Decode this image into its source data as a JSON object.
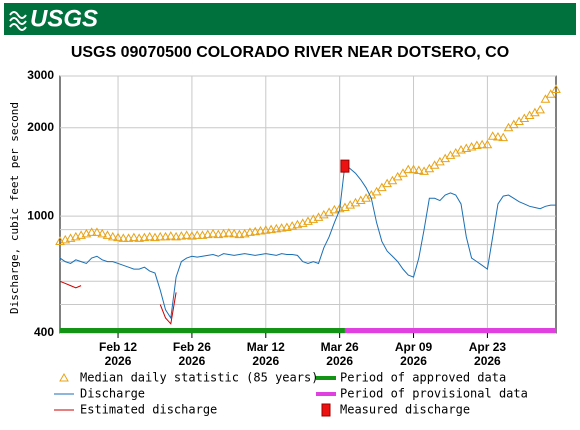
{
  "header": {
    "logo": "USGS"
  },
  "chart_data": {
    "type": "line",
    "title": "USGS 09070500 COLORADO RIVER NEAR DOTSERO, CO",
    "y_label": "Discharge, cubic feet per second",
    "log_y": true,
    "grid": true,
    "ylim": [
      400,
      3000
    ],
    "yticks": [
      400,
      1000,
      2000,
      3000
    ],
    "yminorticks": [
      500,
      600,
      700,
      800,
      900
    ],
    "xlim": [
      "2026-02-01",
      "2026-05-06"
    ],
    "xticks": [
      {
        "value": "2026-02-12",
        "label": "Feb 12\n2026"
      },
      {
        "value": "2026-02-26",
        "label": "Feb 26\n2026"
      },
      {
        "value": "2026-03-12",
        "label": "Mar 12\n2026"
      },
      {
        "value": "2026-03-26",
        "label": "Mar 26\n2026"
      },
      {
        "value": "2026-04-09",
        "label": "Apr 09\n2026"
      },
      {
        "value": "2026-04-23",
        "label": "Apr 23\n2026"
      }
    ],
    "x": [
      "2026-02-01",
      "2026-02-02",
      "2026-02-03",
      "2026-02-04",
      "2026-02-05",
      "2026-02-06",
      "2026-02-07",
      "2026-02-08",
      "2026-02-09",
      "2026-02-10",
      "2026-02-11",
      "2026-02-12",
      "2026-02-13",
      "2026-02-14",
      "2026-02-15",
      "2026-02-16",
      "2026-02-17",
      "2026-02-18",
      "2026-02-19",
      "2026-02-20",
      "2026-02-21",
      "2026-02-22",
      "2026-02-23",
      "2026-02-24",
      "2026-02-25",
      "2026-02-26",
      "2026-02-27",
      "2026-02-28",
      "2026-03-01",
      "2026-03-02",
      "2026-03-03",
      "2026-03-04",
      "2026-03-05",
      "2026-03-06",
      "2026-03-07",
      "2026-03-08",
      "2026-03-09",
      "2026-03-10",
      "2026-03-11",
      "2026-03-12",
      "2026-03-13",
      "2026-03-14",
      "2026-03-15",
      "2026-03-16",
      "2026-03-17",
      "2026-03-18",
      "2026-03-19",
      "2026-03-20",
      "2026-03-21",
      "2026-03-22",
      "2026-03-23",
      "2026-03-24",
      "2026-03-25",
      "2026-03-26",
      "2026-03-27",
      "2026-03-28",
      "2026-03-29",
      "2026-03-30",
      "2026-03-31",
      "2026-04-01",
      "2026-04-02",
      "2026-04-03",
      "2026-04-04",
      "2026-04-05",
      "2026-04-06",
      "2026-04-07",
      "2026-04-08",
      "2026-04-09",
      "2026-04-10",
      "2026-04-11",
      "2026-04-12",
      "2026-04-13",
      "2026-04-14",
      "2026-04-15",
      "2026-04-16",
      "2026-04-17",
      "2026-04-18",
      "2026-04-19",
      "2026-04-20",
      "2026-04-21",
      "2026-04-22",
      "2026-04-23",
      "2026-04-24",
      "2026-04-25",
      "2026-04-26",
      "2026-04-27",
      "2026-04-28",
      "2026-04-29",
      "2026-04-30",
      "2026-05-01",
      "2026-05-02",
      "2026-05-03",
      "2026-05-04",
      "2026-05-05",
      "2026-05-06"
    ],
    "series": [
      {
        "name": "Median daily statistic (85 years)",
        "type": "scatter",
        "marker": "triangle",
        "color": "#e8a317",
        "values": [
          820,
          830,
          840,
          850,
          860,
          870,
          880,
          880,
          870,
          860,
          850,
          845,
          840,
          840,
          845,
          840,
          845,
          850,
          845,
          850,
          850,
          855,
          850,
          855,
          860,
          855,
          860,
          860,
          865,
          870,
          865,
          870,
          875,
          870,
          865,
          870,
          880,
          885,
          890,
          895,
          900,
          905,
          910,
          915,
          925,
          935,
          945,
          960,
          975,
          990,
          1010,
          1030,
          1050,
          1060,
          1070,
          1090,
          1110,
          1130,
          1150,
          1180,
          1210,
          1250,
          1290,
          1320,
          1360,
          1400,
          1440,
          1440,
          1430,
          1420,
          1450,
          1490,
          1530,
          1570,
          1610,
          1640,
          1680,
          1700,
          1720,
          1740,
          1750,
          1750,
          1870,
          1860,
          1850,
          2000,
          2050,
          2100,
          2150,
          2200,
          2250,
          2300,
          2500,
          2600,
          2700
        ]
      },
      {
        "name": "Discharge",
        "type": "line",
        "color": "#1a6fb5",
        "values": [
          720,
          700,
          690,
          710,
          700,
          690,
          720,
          730,
          710,
          700,
          700,
          690,
          680,
          670,
          660,
          660,
          670,
          650,
          640,
          560,
          480,
          450,
          620,
          700,
          720,
          730,
          725,
          730,
          735,
          740,
          730,
          745,
          740,
          735,
          740,
          745,
          740,
          735,
          740,
          745,
          740,
          735,
          745,
          740,
          740,
          735,
          700,
          690,
          700,
          690,
          780,
          850,
          950,
          1050,
          1500,
          1450,
          1400,
          1330,
          1250,
          1150,
          950,
          820,
          760,
          730,
          700,
          660,
          630,
          620,
          720,
          900,
          1150,
          1150,
          1130,
          1180,
          1200,
          1180,
          1100,
          850,
          720,
          700,
          680,
          660,
          850,
          1100,
          1170,
          1180,
          1150,
          1120,
          1100,
          1080,
          1070,
          1060,
          1080,
          1090,
          1090
        ]
      },
      {
        "name": "Estimated discharge",
        "type": "line",
        "color": "#cc0000",
        "x": [
          "2026-02-01",
          "2026-02-02",
          "2026-02-03",
          "2026-02-04",
          "2026-02-05",
          "2026-02-12",
          "2026-02-20",
          "2026-02-21",
          "2026-02-22",
          "2026-02-23"
        ],
        "values": [
          600,
          590,
          580,
          570,
          580,
          null,
          500,
          450,
          430,
          550
        ]
      },
      {
        "name": "Measured discharge",
        "type": "scatter",
        "marker": "square",
        "color": "#ee1111",
        "x": [
          "2026-03-27"
        ],
        "values": [
          1480
        ]
      }
    ],
    "periods": [
      {
        "name": "Period of approved data",
        "color": "#149414",
        "start": "2026-02-01",
        "end": "2026-03-27"
      },
      {
        "name": "Period of provisional data",
        "color": "#e040e0",
        "start": "2026-03-27",
        "end": "2026-05-06"
      }
    ]
  }
}
